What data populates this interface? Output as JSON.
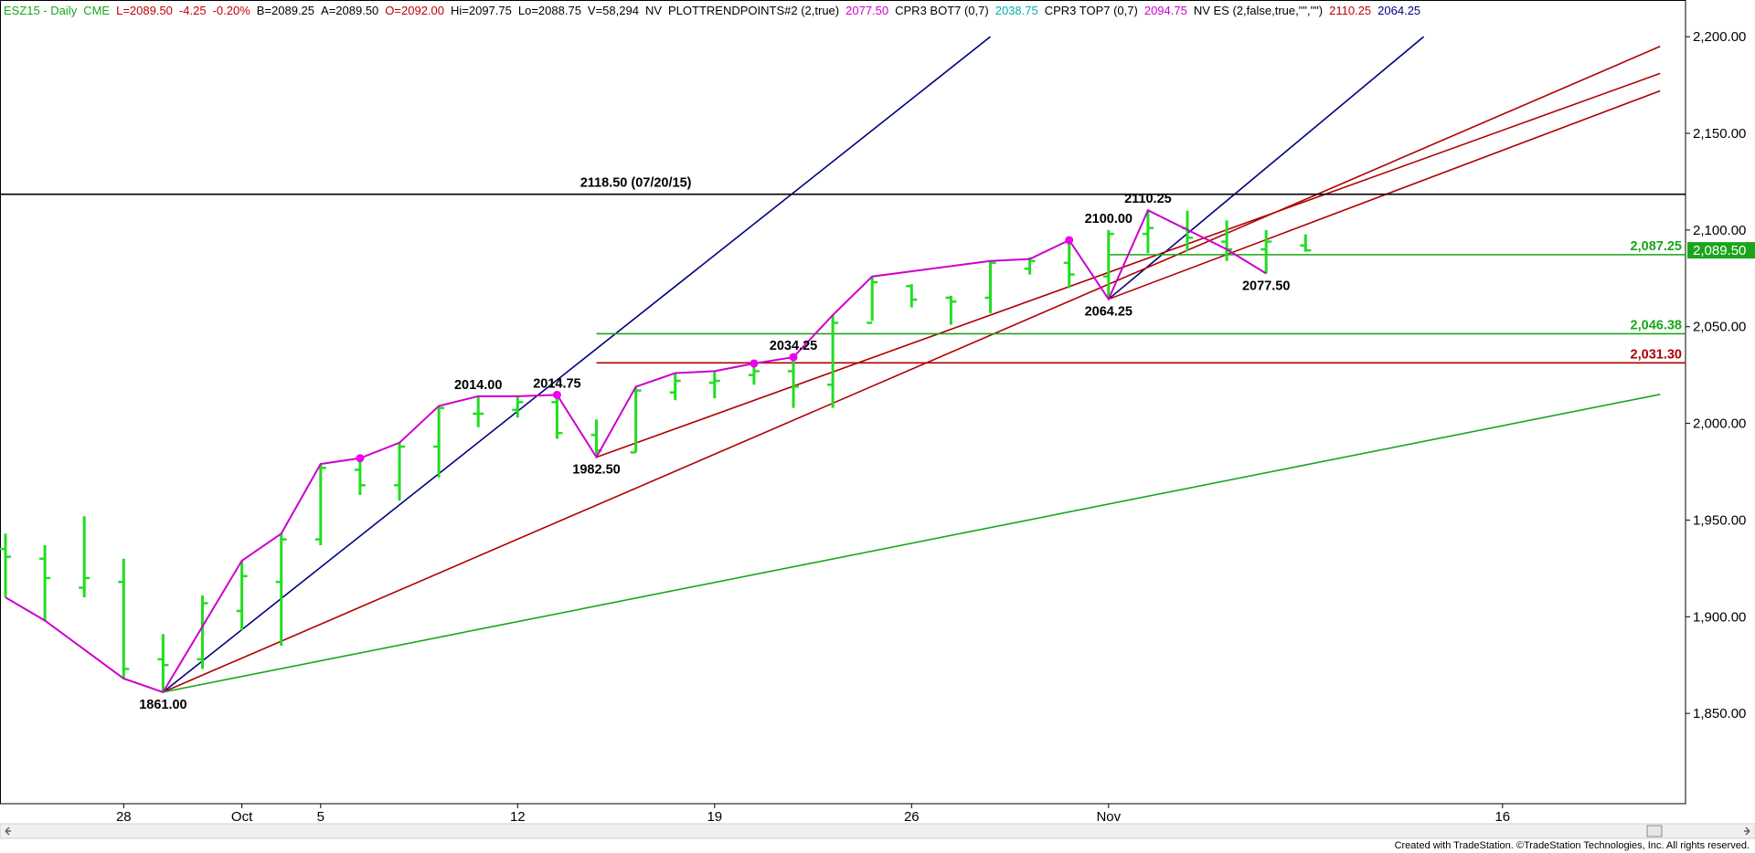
{
  "header": {
    "items": [
      {
        "text": "ESZ15 - Daily",
        "color": "#1aa51a"
      },
      {
        "text": "CME",
        "color": "#1aa51a"
      },
      {
        "text": "L=2089.50",
        "color": "#c00000"
      },
      {
        "text": "-4.25",
        "color": "#c00000"
      },
      {
        "text": "-0.20%",
        "color": "#c00000"
      },
      {
        "text": "B=2089.25",
        "color": "#000000"
      },
      {
        "text": "A=2089.50",
        "color": "#000000"
      },
      {
        "text": "O=2092.00",
        "color": "#c00000"
      },
      {
        "text": "Hi=2097.75",
        "color": "#000000"
      },
      {
        "text": "Lo=2088.75",
        "color": "#000000"
      },
      {
        "text": "V=58,294",
        "color": "#000000"
      },
      {
        "text": "NV",
        "color": "#000000"
      },
      {
        "text": "PLOTTRENDPOINTS#2 (2,true)",
        "color": "#000000"
      },
      {
        "text": "2077.50",
        "color": "#cc00cc"
      },
      {
        "text": "CPR3 BOT7 (0,7)",
        "color": "#000000"
      },
      {
        "text": "2038.75",
        "color": "#00b0b0"
      },
      {
        "text": "CPR3 TOP7 (0,7)",
        "color": "#000000"
      },
      {
        "text": "2094.75",
        "color": "#cc00cc"
      },
      {
        "text": "NV ES (2,false,true,\"\",\"\")",
        "color": "#000000"
      },
      {
        "text": "2110.25",
        "color": "#c00000"
      },
      {
        "text": "2064.25",
        "color": "#000080"
      }
    ]
  },
  "chart_data": {
    "type": "bar",
    "subtype": "ohlc",
    "ylim": [
      1800,
      2210
    ],
    "y_ticks": [
      {
        "value": 1850,
        "label": "1,850.00"
      },
      {
        "value": 1900,
        "label": "1,900.00"
      },
      {
        "value": 1950,
        "label": "1,950.00"
      },
      {
        "value": 2000,
        "label": "2,000.00"
      },
      {
        "value": 2050,
        "label": "2,050.00"
      },
      {
        "value": 2100,
        "label": "2,100.00"
      },
      {
        "value": 2150,
        "label": "2,150.00"
      },
      {
        "value": 2200,
        "label": "2,200.00"
      }
    ],
    "x_ticks": [
      {
        "i": 3,
        "label": "28"
      },
      {
        "i": 6,
        "label": "Oct"
      },
      {
        "i": 8,
        "label": "5"
      },
      {
        "i": 13,
        "label": "12"
      },
      {
        "i": 18,
        "label": "19"
      },
      {
        "i": 23,
        "label": "26"
      },
      {
        "i": 28,
        "label": "Nov"
      },
      {
        "i": 38,
        "label": "16"
      }
    ],
    "bars": [
      {
        "i": 0,
        "o": 1935,
        "h": 1943,
        "l": 1910,
        "c": 1931
      },
      {
        "i": 1,
        "o": 1930,
        "h": 1937,
        "l": 1898,
        "c": 1920
      },
      {
        "i": 2,
        "o": 1915,
        "h": 1952,
        "l": 1910,
        "c": 1920
      },
      {
        "i": 3,
        "o": 1918,
        "h": 1930,
        "l": 1868,
        "c": 1873
      },
      {
        "i": 4,
        "o": 1878,
        "h": 1891,
        "l": 1861,
        "c": 1875
      },
      {
        "i": 5,
        "o": 1878,
        "h": 1911,
        "l": 1873,
        "c": 1907
      },
      {
        "i": 6,
        "o": 1903,
        "h": 1929,
        "l": 1893,
        "c": 1921
      },
      {
        "i": 7,
        "o": 1918,
        "h": 1943,
        "l": 1885,
        "c": 1940
      },
      {
        "i": 8,
        "o": 1940,
        "h": 1979,
        "l": 1937,
        "c": 1977
      },
      {
        "i": 9,
        "o": 1976,
        "h": 1982,
        "l": 1963,
        "c": 1968
      },
      {
        "i": 10,
        "o": 1968,
        "h": 1990,
        "l": 1960,
        "c": 1988
      },
      {
        "i": 11,
        "o": 1988,
        "h": 2009,
        "l": 1972,
        "c": 2008
      },
      {
        "i": 12,
        "o": 2005,
        "h": 2014,
        "l": 1998,
        "c": 2005
      },
      {
        "i": 13,
        "o": 2007,
        "h": 2014,
        "l": 2003,
        "c": 2011
      },
      {
        "i": 14,
        "o": 2011,
        "h": 2014.75,
        "l": 1992,
        "c": 1995
      },
      {
        "i": 15,
        "o": 1994,
        "h": 2002,
        "l": 1982.5,
        "c": 1986
      },
      {
        "i": 16,
        "o": 1985,
        "h": 2019,
        "l": 1985,
        "c": 2017
      },
      {
        "i": 17,
        "o": 2016,
        "h": 2026,
        "l": 2012,
        "c": 2022
      },
      {
        "i": 18,
        "o": 2021,
        "h": 2027,
        "l": 2013,
        "c": 2022
      },
      {
        "i": 19,
        "o": 2025,
        "h": 2031,
        "l": 2020,
        "c": 2027
      },
      {
        "i": 20,
        "o": 2027,
        "h": 2034.25,
        "l": 2008,
        "c": 2019
      },
      {
        "i": 21,
        "o": 2020,
        "h": 2056,
        "l": 2008,
        "c": 2052
      },
      {
        "i": 22,
        "o": 2052,
        "h": 2076,
        "l": 2053,
        "c": 2073
      },
      {
        "i": 23,
        "o": 2071,
        "h": 2072,
        "l": 2060,
        "c": 2064
      },
      {
        "i": 24,
        "o": 2065,
        "h": 2066,
        "l": 2051,
        "c": 2063
      },
      {
        "i": 25,
        "o": 2065,
        "h": 2084,
        "l": 2057,
        "c": 2083
      },
      {
        "i": 26,
        "o": 2080,
        "h": 2086,
        "l": 2077,
        "c": 2084
      },
      {
        "i": 27,
        "o": 2083,
        "h": 2094.75,
        "l": 2070,
        "c": 2077
      },
      {
        "i": 28,
        "o": 2076,
        "h": 2100,
        "l": 2064.25,
        "c": 2098
      },
      {
        "i": 29,
        "o": 2098,
        "h": 2110.25,
        "l": 2088,
        "c": 2101
      },
      {
        "i": 30,
        "o": 2101,
        "h": 2110,
        "l": 2089,
        "c": 2096
      },
      {
        "i": 31,
        "o": 2094,
        "h": 2105,
        "l": 2084,
        "c": 2090
      },
      {
        "i": 32,
        "o": 2090,
        "h": 2100,
        "l": 2077.5,
        "c": 2094
      },
      {
        "i": 33,
        "o": 2092,
        "h": 2097.75,
        "l": 2088.75,
        "c": 2089.5
      }
    ],
    "trendpoints": [
      {
        "i": 0,
        "v": 1910
      },
      {
        "i": 1,
        "v": 1898
      },
      {
        "i": 3,
        "v": 1868
      },
      {
        "i": 4,
        "v": 1861
      },
      {
        "i": 6,
        "v": 1929
      },
      {
        "i": 7,
        "v": 1943
      },
      {
        "i": 8,
        "v": 1979
      },
      {
        "i": 9,
        "v": 1982
      },
      {
        "i": 10,
        "v": 1990
      },
      {
        "i": 11,
        "v": 2009
      },
      {
        "i": 12,
        "v": 2014
      },
      {
        "i": 13,
        "v": 2014
      },
      {
        "i": 14,
        "v": 2014.75
      },
      {
        "i": 15,
        "v": 1982.5
      },
      {
        "i": 16,
        "v": 2019
      },
      {
        "i": 17,
        "v": 2026
      },
      {
        "i": 18,
        "v": 2027
      },
      {
        "i": 19,
        "v": 2031
      },
      {
        "i": 20,
        "v": 2034.25
      },
      {
        "i": 21,
        "v": 2056
      },
      {
        "i": 22,
        "v": 2076
      },
      {
        "i": 25,
        "v": 2084
      },
      {
        "i": 26,
        "v": 2085
      },
      {
        "i": 27,
        "v": 2094.75
      },
      {
        "i": 28,
        "v": 2064.25
      },
      {
        "i": 29,
        "v": 2110.25
      },
      {
        "i": 31,
        "v": 2090
      },
      {
        "i": 32,
        "v": 2077.5
      }
    ],
    "trendpoint_markers": [
      {
        "i": 9,
        "v": 1982
      },
      {
        "i": 14,
        "v": 2014.75
      },
      {
        "i": 19,
        "v": 2031
      },
      {
        "i": 20,
        "v": 2034.25
      },
      {
        "i": 27,
        "v": 2094.75
      }
    ],
    "trendlines": [
      {
        "color": "#000080",
        "from": {
          "i": 4,
          "v": 1861
        },
        "to": {
          "i": 25,
          "v": 2200
        }
      },
      {
        "color": "#000080",
        "from": {
          "i": 28,
          "v": 2064.25
        },
        "to": {
          "i": 36,
          "v": 2200
        }
      },
      {
        "color": "#b00000",
        "from": {
          "i": 4,
          "v": 1861
        },
        "to": {
          "i": 42,
          "v": 2195
        }
      },
      {
        "color": "#b00000",
        "from": {
          "i": 15,
          "v": 1982.5
        },
        "to": {
          "i": 42,
          "v": 2181
        }
      },
      {
        "color": "#b00000",
        "from": {
          "i": 28,
          "v": 2064.25
        },
        "to": {
          "i": 42,
          "v": 2172
        }
      },
      {
        "color": "#1aa51a",
        "from": {
          "i": 4,
          "v": 1861
        },
        "to": {
          "i": 42,
          "v": 2015
        }
      }
    ],
    "hlines": [
      {
        "v": 2118.5,
        "color": "#000000",
        "start_i": 0
      },
      {
        "v": 2087.25,
        "color": "#1aa51a",
        "start_i": 28,
        "label": "2,087.25"
      },
      {
        "v": 2046.38,
        "color": "#1aa51a",
        "start_i": 15,
        "label": "2,046.38"
      },
      {
        "v": 2031.3,
        "color": "#b00000",
        "start_i": 15,
        "label": "2,031.30"
      }
    ],
    "annotations": [
      {
        "i": 4,
        "v": 1861,
        "text": "1861.00",
        "pos": "below"
      },
      {
        "i": 12,
        "v": 2014,
        "text": "2014.00",
        "pos": "above"
      },
      {
        "i": 14,
        "v": 2014.75,
        "text": "2014.75",
        "pos": "above"
      },
      {
        "i": 15,
        "v": 1982.5,
        "text": "1982.50",
        "pos": "below"
      },
      {
        "i": 20,
        "v": 2034.25,
        "text": "2034.25",
        "pos": "above"
      },
      {
        "i": 28,
        "v": 2100,
        "text": "2100.00",
        "pos": "above"
      },
      {
        "i": 28,
        "v": 2064.25,
        "text": "2064.25",
        "pos": "below"
      },
      {
        "i": 29,
        "v": 2110.25,
        "text": "2110.25",
        "pos": "above"
      },
      {
        "i": 32,
        "v": 2077.5,
        "text": "2077.50",
        "pos": "below"
      },
      {
        "i": 16,
        "v": 2118.5,
        "text": "2118.50 (07/20/15)",
        "pos": "above"
      }
    ],
    "last_price": {
      "v": 2089.5,
      "label": "2,089.50",
      "color": "#1aa51a"
    }
  },
  "footer": {
    "credit": "Created with TradeStation. ©TradeStation Technologies, Inc. All rights reserved."
  }
}
